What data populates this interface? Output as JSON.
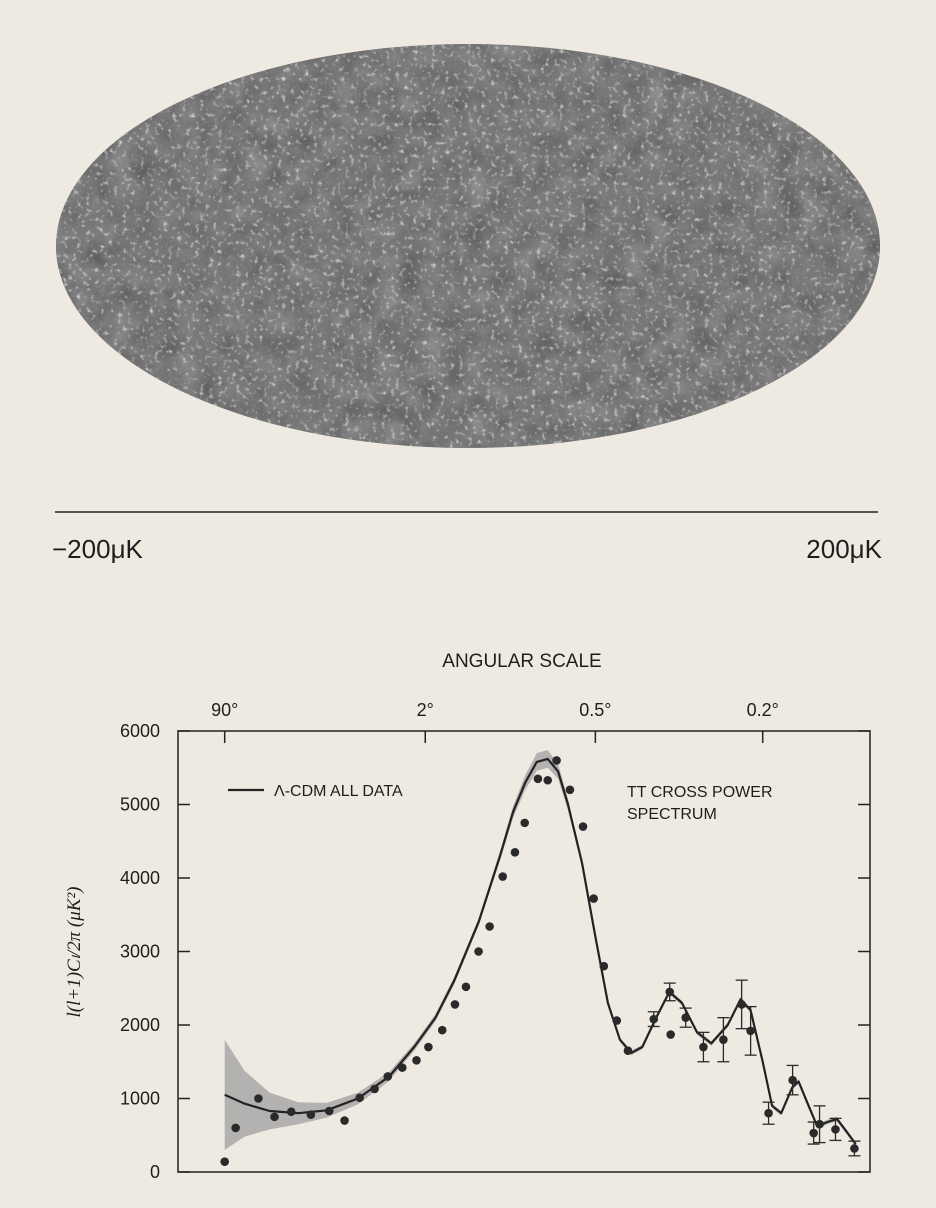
{
  "sky_map": {
    "colorbar_min_label": "−200μK",
    "colorbar_max_label": "200μK"
  },
  "chart_data": {
    "type": "scatter",
    "top_axis_label": "ANGULAR SCALE",
    "ylabel": "l(l+1)Cₗ/2π (μK²)",
    "annotation": [
      "TT CROSS POWER",
      "SPECTRUM"
    ],
    "xscale": "power",
    "xscale_exponent": 0.35,
    "xlim": [
      0.1,
      1430
    ],
    "xticks": [
      {
        "value": 2,
        "label": "90°"
      },
      {
        "value": 90,
        "label": "2°"
      },
      {
        "value": 360,
        "label": "0.5°"
      },
      {
        "value": 900,
        "label": "0.2°"
      }
    ],
    "ylim": [
      0,
      6000
    ],
    "yticks": [
      0,
      1000,
      2000,
      3000,
      4000,
      5000,
      6000
    ],
    "legend": "upper left",
    "series": [
      {
        "name": "Λ-CDM ALL DATA",
        "type": "line",
        "color": "#222222",
        "band_color": "#a8a8a8",
        "x": [
          2,
          4,
          8,
          15,
          25,
          40,
          60,
          80,
          100,
          120,
          150,
          180,
          200,
          220,
          240,
          260,
          280,
          300,
          330,
          360,
          390,
          420,
          450,
          480,
          520,
          560,
          600,
          650,
          700,
          760,
          810,
          850,
          900,
          940,
          980,
          1030,
          1060,
          1100,
          1150,
          1200,
          1250,
          1300,
          1350
        ],
        "values": [
          1050,
          930,
          830,
          800,
          840,
          1000,
          1300,
          1700,
          2100,
          2600,
          3400,
          4300,
          4900,
          5300,
          5580,
          5620,
          5450,
          5000,
          4200,
          3200,
          2300,
          1800,
          1620,
          1700,
          2100,
          2450,
          2300,
          1900,
          1750,
          2000,
          2350,
          2200,
          1500,
          900,
          800,
          1150,
          1230,
          950,
          620,
          680,
          720,
          550,
          380
        ],
        "band_upper": [
          1800,
          1380,
          1080,
          950,
          940,
          1080,
          1360,
          1750,
          2150,
          2650,
          3450,
          4360,
          4980,
          5400,
          5700,
          5740,
          5550,
          5080,
          4250,
          3240,
          2330,
          1830,
          1650,
          1730,
          2130,
          2480,
          2330,
          1930,
          1780,
          2030,
          2380,
          2230,
          1530,
          930,
          830,
          1180,
          1260,
          980,
          650,
          710,
          750,
          580,
          410
        ],
        "band_lower": [
          300,
          480,
          580,
          650,
          740,
          920,
          1240,
          1650,
          2050,
          2550,
          3350,
          4240,
          4820,
          5200,
          5460,
          5500,
          5350,
          4920,
          4150,
          3160,
          2270,
          1770,
          1590,
          1670,
          2070,
          2420,
          2270,
          1870,
          1720,
          1970,
          2320,
          2170,
          1470,
          870,
          770,
          1120,
          1200,
          920,
          590,
          650,
          690,
          520,
          350
        ]
      },
      {
        "type": "scatter",
        "color": "#2a2a2a",
        "x": [
          2,
          3,
          6,
          9,
          13,
          19,
          26,
          33,
          41,
          50,
          59,
          70,
          82,
          93,
          107,
          121,
          134,
          150,
          165,
          184,
          203,
          219,
          242,
          260,
          277,
          304,
          332,
          356,
          380,
          412,
          441,
          513,
          561,
          564,
          612,
          672,
          744,
          814,
          850,
          925,
          1032,
          1132,
          1161,
          1242,
          1343
        ],
        "values": [
          140,
          600,
          1000,
          750,
          820,
          780,
          830,
          700,
          1010,
          1130,
          1300,
          1420,
          1520,
          1700,
          1930,
          2280,
          2520,
          3000,
          3340,
          4020,
          4350,
          4750,
          5350,
          5330,
          5600,
          5200,
          4700,
          3720,
          2800,
          2060,
          1650,
          2080,
          2450,
          1870,
          2100,
          1700,
          1800,
          2280,
          1920,
          800,
          1250,
          530,
          650,
          580,
          320
        ],
        "errors": [
          null,
          null,
          null,
          null,
          null,
          null,
          null,
          null,
          null,
          null,
          null,
          null,
          null,
          null,
          null,
          null,
          null,
          null,
          null,
          null,
          null,
          null,
          null,
          null,
          null,
          null,
          null,
          null,
          null,
          null,
          null,
          100,
          120,
          null,
          130,
          200,
          300,
          330,
          330,
          150,
          200,
          150,
          250,
          150,
          100
        ]
      }
    ]
  }
}
